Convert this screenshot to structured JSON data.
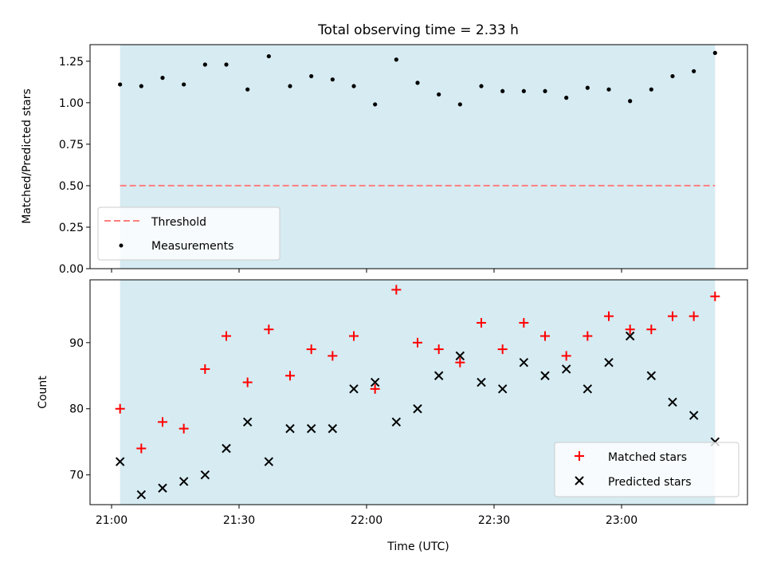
{
  "chart_data": [
    {
      "type": "scatter",
      "title": "Total observing time = 2.33 h",
      "xlabel": "",
      "ylabel": "Matched/Predicted stars",
      "ylim": [
        0,
        1.35
      ],
      "yticks": [
        0.0,
        0.25,
        0.5,
        0.75,
        1.0,
        1.25
      ],
      "ytick_labels": [
        "0.00",
        "0.25",
        "0.50",
        "0.75",
        "1.00",
        "1.25"
      ],
      "threshold": 0.5,
      "shaded_region": {
        "start": "21:02",
        "end": "23:22",
        "color": "#add8e6"
      },
      "legend": {
        "position": "lower-left",
        "entries": [
          "Threshold",
          "Measurements"
        ]
      },
      "series": [
        {
          "name": "Measurements",
          "x": [
            "21:02",
            "21:07",
            "21:12",
            "21:17",
            "21:22",
            "21:27",
            "21:32",
            "21:37",
            "21:42",
            "21:47",
            "21:52",
            "21:57",
            "22:02",
            "22:07",
            "22:12",
            "22:17",
            "22:22",
            "22:27",
            "22:32",
            "22:37",
            "22:42",
            "22:47",
            "22:52",
            "22:57",
            "23:02",
            "23:07",
            "23:12",
            "23:17",
            "23:22"
          ],
          "values": [
            1.11,
            1.1,
            1.15,
            1.11,
            1.23,
            1.23,
            1.08,
            1.28,
            1.1,
            1.16,
            1.14,
            1.1,
            0.99,
            1.26,
            1.12,
            1.05,
            0.99,
            1.1,
            1.07,
            1.07,
            1.07,
            1.03,
            1.09,
            1.08,
            1.01,
            1.08,
            1.16,
            1.19,
            1.3
          ]
        }
      ]
    },
    {
      "type": "scatter",
      "xlabel": "Time (UTC)",
      "ylabel": "Count",
      "ylim": [
        65.5,
        99.5
      ],
      "yticks": [
        70,
        80,
        90
      ],
      "ytick_labels": [
        "70",
        "80",
        "90"
      ],
      "x_ticks": [
        "21:00",
        "21:30",
        "22:00",
        "22:30",
        "23:00"
      ],
      "shaded_region": {
        "start": "21:02",
        "end": "23:22",
        "color": "#add8e6"
      },
      "legend": {
        "position": "lower-right",
        "entries": [
          "Matched stars",
          "Predicted stars"
        ]
      },
      "series": [
        {
          "name": "Matched stars",
          "marker": "+",
          "color": "#ff0000",
          "x": [
            "21:02",
            "21:07",
            "21:12",
            "21:17",
            "21:22",
            "21:27",
            "21:32",
            "21:37",
            "21:42",
            "21:47",
            "21:52",
            "21:57",
            "22:02",
            "22:07",
            "22:12",
            "22:17",
            "22:22",
            "22:27",
            "22:32",
            "22:37",
            "22:42",
            "22:47",
            "22:52",
            "22:57",
            "23:02",
            "23:07",
            "23:12",
            "23:17",
            "23:22"
          ],
          "values": [
            80,
            74,
            78,
            77,
            86,
            91,
            84,
            92,
            85,
            89,
            88,
            91,
            83,
            98,
            90,
            89,
            87,
            93,
            89,
            93,
            91,
            88,
            91,
            94,
            92,
            92,
            94,
            94,
            97
          ]
        },
        {
          "name": "Predicted stars",
          "marker": "x",
          "color": "#000000",
          "x": [
            "21:02",
            "21:07",
            "21:12",
            "21:17",
            "21:22",
            "21:27",
            "21:32",
            "21:37",
            "21:42",
            "21:47",
            "21:52",
            "21:57",
            "22:02",
            "22:07",
            "22:12",
            "22:17",
            "22:22",
            "22:27",
            "22:32",
            "22:37",
            "22:42",
            "22:47",
            "22:52",
            "22:57",
            "23:02",
            "23:07",
            "23:12",
            "23:17",
            "23:22"
          ],
          "values": [
            72,
            67,
            68,
            69,
            70,
            74,
            78,
            72,
            77,
            77,
            77,
            83,
            84,
            78,
            80,
            85,
            88,
            84,
            83,
            87,
            85,
            86,
            83,
            87,
            91,
            85,
            81,
            79,
            75
          ]
        }
      ]
    }
  ]
}
